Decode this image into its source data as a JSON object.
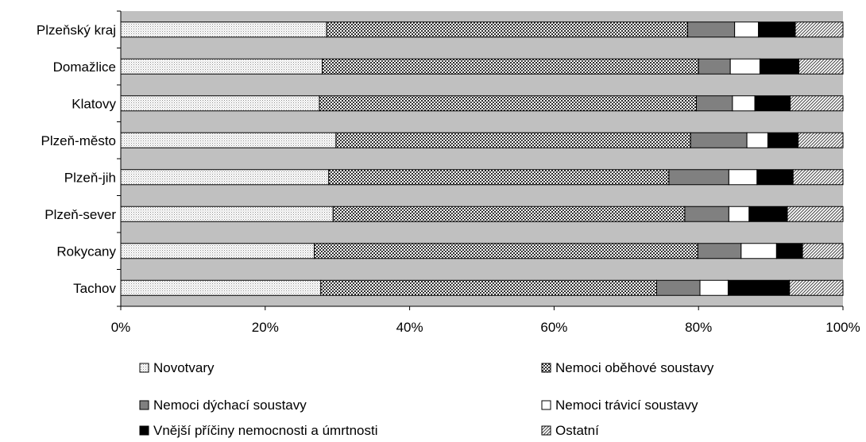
{
  "chart_data": {
    "type": "bar",
    "orientation": "horizontal",
    "stacked": "percent",
    "categories": [
      "Plzeňský kraj",
      "Domažlice",
      "Klatovy",
      "Plzeň-město",
      "Plzeň-jih",
      "Plzeň-sever",
      "Rokycany",
      "Tachov"
    ],
    "series": [
      {
        "name": "Novotvary",
        "pattern": "dots-light",
        "values": [
          28.5,
          27.9,
          27.5,
          29.8,
          28.8,
          29.4,
          26.8,
          27.7
        ]
      },
      {
        "name": "Nemoci oběhové soustavy",
        "pattern": "checker-dark",
        "values": [
          50.0,
          52.1,
          52.2,
          49.1,
          47.1,
          48.7,
          53.1,
          46.5
        ]
      },
      {
        "name": "Nemoci dýchací soustavy",
        "pattern": "solid-gray",
        "values": [
          6.5,
          4.4,
          5.0,
          7.8,
          8.3,
          6.1,
          6.0,
          6.0
        ]
      },
      {
        "name": "Nemoci trávicí soustavy",
        "pattern": "solid-white",
        "values": [
          3.3,
          4.1,
          3.1,
          2.9,
          3.9,
          2.8,
          4.9,
          3.9
        ]
      },
      {
        "name": "Vnější příčiny nemocnosti a úmrtnosti",
        "pattern": "solid-black",
        "values": [
          5.1,
          5.4,
          4.9,
          4.2,
          5.0,
          5.3,
          3.6,
          8.5
        ]
      },
      {
        "name": "Ostatní",
        "pattern": "diagonal",
        "values": [
          6.6,
          6.1,
          7.3,
          6.2,
          6.9,
          7.7,
          5.6,
          7.4
        ]
      }
    ],
    "xlim": [
      0,
      100
    ],
    "x_ticks": [
      "0%",
      "20%",
      "40%",
      "60%",
      "80%",
      "100%"
    ],
    "title": "",
    "xlabel": "",
    "ylabel": "",
    "grid": false,
    "plot_background": "#c0c0c0",
    "legend_position": "bottom",
    "colors": {
      "gray": "#808080",
      "black": "#000000",
      "white": "#ffffff",
      "background": "#c0c0c0"
    }
  }
}
